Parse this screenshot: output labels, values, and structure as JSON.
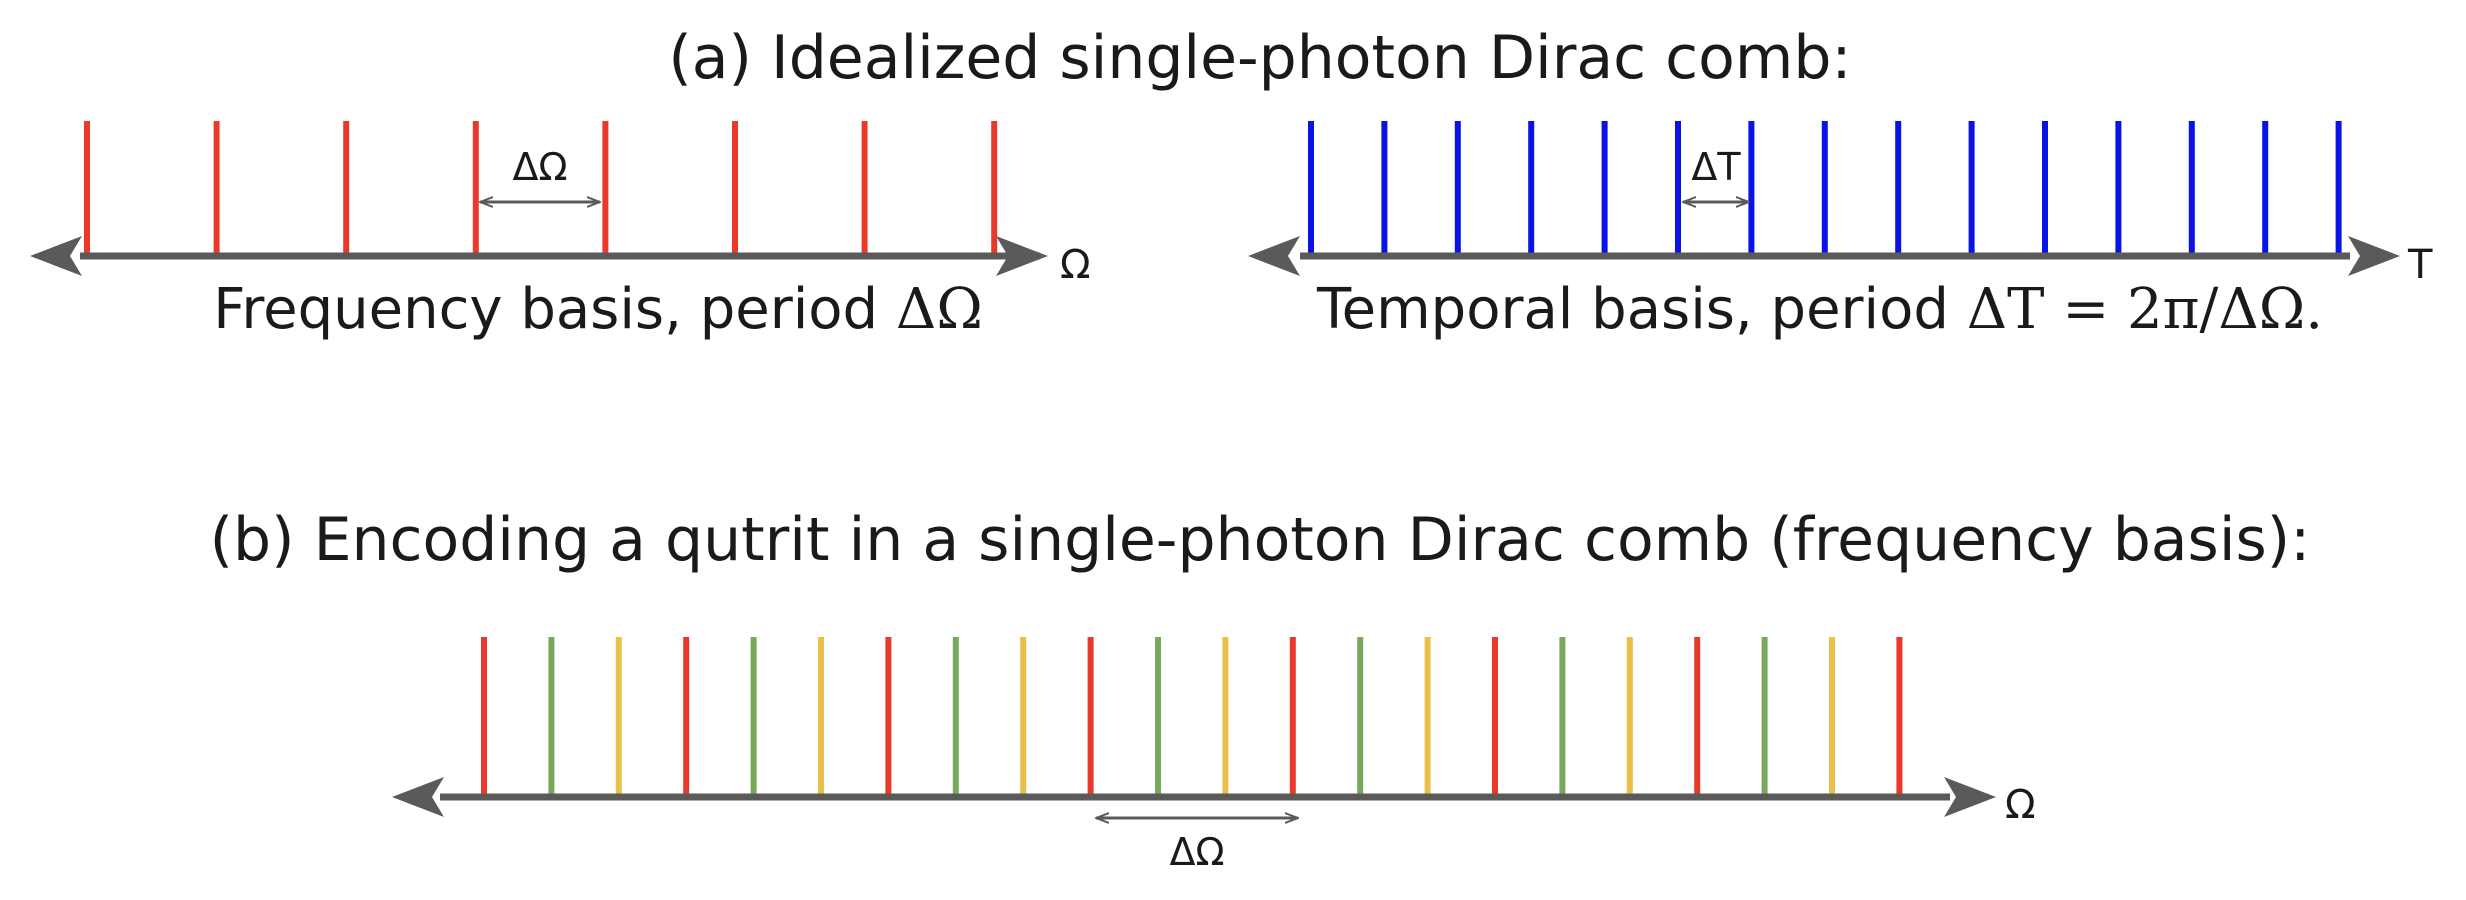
{
  "panel_a": {
    "title": "(a) Idealized single-photon Dirac comb:",
    "frequency": {
      "caption_text": "Frequency basis, period ",
      "caption_math": "ΔΩ",
      "axis_label": "Ω",
      "spacing_label": "ΔΩ",
      "tooth_color": "#e8392b",
      "tooth_count": 8
    },
    "temporal": {
      "caption_text": "Temporal basis, period ",
      "caption_math": "ΔT = 2π/ΔΩ.",
      "axis_label": "T",
      "spacing_label": "ΔT",
      "tooth_color": "#0a12e6",
      "tooth_count": 15
    }
  },
  "panel_b": {
    "title": "(b) Encoding a qutrit in a single-photon Dirac comb (frequency basis):",
    "axis_label": "Ω",
    "spacing_label": "ΔΩ",
    "tooth_colors": [
      "#e8392b",
      "#78a85a",
      "#e8c04a"
    ],
    "tooth_count": 22
  },
  "colors": {
    "axis": "#5a5a5a",
    "text": "#1a1a1a"
  }
}
